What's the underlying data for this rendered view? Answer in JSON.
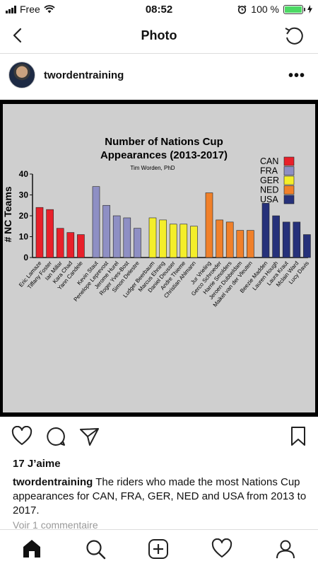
{
  "status": {
    "carrier": "Free",
    "time": "08:52",
    "battery": "100 %"
  },
  "nav": {
    "title": "Photo"
  },
  "post": {
    "username": "twordentraining",
    "more": "•••",
    "likes": "17 J’aime",
    "caption_user": "twordentraining",
    "caption_text": " The riders who made the most Nations Cup appearances for CAN, FRA, GER, NED and USA from 2013 to 2017.",
    "comments": "Voir 1 commentaire"
  },
  "colors": {
    "CAN": "#e8202a",
    "FRA": "#8e8fc4",
    "GER": "#f4ee2a",
    "NED": "#f0802a",
    "USA": "#26317a",
    "background": "#cfcfcf"
  },
  "chart_data": {
    "type": "bar",
    "title": "Number of Nations Cup Appearances (2013-2017)",
    "subtitle": "Tim Worden, PhD",
    "xlabel": "",
    "ylabel": "# NC Teams",
    "ylim": [
      0,
      40
    ],
    "yticks": [
      0,
      10,
      20,
      30,
      40
    ],
    "legend": {
      "placement": "top-right",
      "entries": [
        "CAN",
        "FRA",
        "GER",
        "NED",
        "USA"
      ]
    },
    "grid": false,
    "groups": [
      {
        "name": "CAN",
        "color": "#e8202a",
        "riders": [
          "Eric Lamaze",
          "Tiffany Foster",
          "Ian Millar",
          "Kara Chad",
          "Yann Candele"
        ],
        "values": [
          24,
          23,
          14,
          12,
          11
        ]
      },
      {
        "name": "FRA",
        "color": "#8e8fc4",
        "riders": [
          "Kevin Staut",
          "Penelope Leprevost",
          "Jerome Hurel",
          "Roger Yves-Bost",
          "Simon Delestre"
        ],
        "values": [
          34,
          25,
          20,
          19,
          14
        ]
      },
      {
        "name": "GER",
        "color": "#f4ee2a",
        "riders": [
          "Ludger Beerbaum",
          "Marcus Ehning",
          "Daniel Deusser",
          "Andre Thieme",
          "Christian Ahlmann"
        ],
        "values": [
          19,
          18,
          16,
          16,
          15
        ]
      },
      {
        "name": "NED",
        "color": "#f0802a",
        "riders": [
          "Jur Vrieling",
          "Gerco Schroeder",
          "Harrie Smolders",
          "Jeroen Dubbeldam",
          "Maikel van der Vleuten"
        ],
        "values": [
          31,
          18,
          17,
          13,
          13
        ]
      },
      {
        "name": "USA",
        "color": "#26317a",
        "riders": [
          "Beezie Madden",
          "Lauren Hough",
          "Laura Kraut",
          "Mclain Ward",
          "Lucy Davis"
        ],
        "values": [
          26,
          20,
          17,
          17,
          11
        ]
      }
    ]
  }
}
